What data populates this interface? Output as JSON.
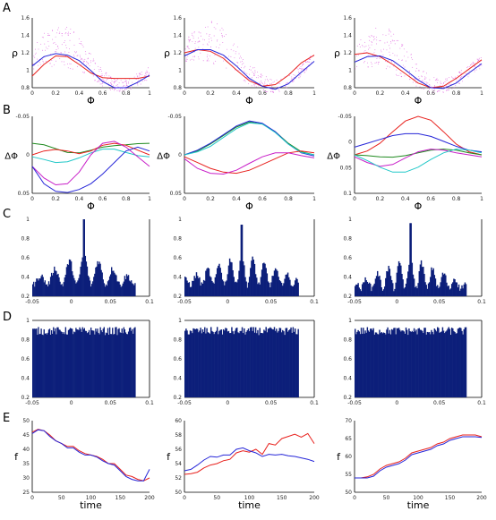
{
  "figure": {
    "row_labels": [
      "A",
      "B",
      "C",
      "D",
      "E"
    ],
    "colors": {
      "red": "#e8211d",
      "blue": "#2525d8",
      "green": "#1f8a1f",
      "cyan": "#22c8c8",
      "magenta": "#c81fc8",
      "navy": "#0c1f7a",
      "dots": "#e066e0"
    }
  },
  "chart_data": [
    {
      "id": "A1",
      "type": "line",
      "xlabel": "Φ",
      "ylabel": "ρ",
      "xlim": [
        0,
        1
      ],
      "ylim": [
        0.8,
        1.7
      ],
      "xticks": [
        "0",
        "0.2",
        "0.4",
        "0.6",
        "0.8",
        "1"
      ],
      "yticks": [
        "0.8",
        "1",
        "1.2",
        "1.4",
        "1.6"
      ],
      "scatter_cloud": true,
      "x": [
        0,
        0.1,
        0.2,
        0.3,
        0.4,
        0.5,
        0.6,
        0.7,
        0.8,
        0.9,
        1.0
      ],
      "series": [
        {
          "color": "red",
          "values": [
            0.95,
            1.1,
            1.21,
            1.2,
            1.1,
            0.99,
            0.93,
            0.92,
            0.92,
            0.92,
            0.95
          ]
        },
        {
          "color": "blue",
          "values": [
            1.08,
            1.2,
            1.24,
            1.22,
            1.15,
            1.02,
            0.88,
            0.8,
            0.8,
            0.87,
            0.96
          ]
        }
      ]
    },
    {
      "id": "A2",
      "type": "line",
      "xlabel": "Φ",
      "ylabel": "ρ",
      "xlim": [
        0,
        1
      ],
      "ylim": [
        0.8,
        1.7
      ],
      "xticks": [
        "0",
        "0.2",
        "0.4",
        "0.6",
        "0.8",
        "1"
      ],
      "yticks": [
        "0.8",
        "1",
        "1.2",
        "1.4",
        "1.6"
      ],
      "scatter_cloud": true,
      "x": [
        0,
        0.1,
        0.2,
        0.3,
        0.4,
        0.5,
        0.6,
        0.7,
        0.8,
        0.9,
        1.0
      ],
      "series": [
        {
          "color": "red",
          "values": [
            1.25,
            1.29,
            1.27,
            1.18,
            1.03,
            0.89,
            0.82,
            0.84,
            0.96,
            1.12,
            1.22
          ]
        },
        {
          "color": "blue",
          "values": [
            1.21,
            1.29,
            1.29,
            1.22,
            1.08,
            0.92,
            0.82,
            0.78,
            0.85,
            1.0,
            1.14
          ]
        }
      ]
    },
    {
      "id": "A3",
      "type": "line",
      "xlabel": "Φ",
      "ylabel": "ρ",
      "xlim": [
        0,
        1
      ],
      "ylim": [
        0.8,
        1.7
      ],
      "xticks": [
        "0",
        "0.2",
        "0.4",
        "0.6",
        "0.8",
        "1"
      ],
      "yticks": [
        "0.8",
        "1",
        "1.2",
        "1.4",
        "1.6"
      ],
      "scatter_cloud": true,
      "x": [
        0,
        0.1,
        0.2,
        0.3,
        0.4,
        0.5,
        0.6,
        0.7,
        0.8,
        0.9,
        1.0
      ],
      "series": [
        {
          "color": "red",
          "values": [
            1.23,
            1.25,
            1.2,
            1.1,
            0.98,
            0.86,
            0.8,
            0.82,
            0.92,
            1.04,
            1.16
          ]
        },
        {
          "color": "blue",
          "values": [
            1.13,
            1.2,
            1.21,
            1.15,
            1.03,
            0.9,
            0.8,
            0.79,
            0.86,
            0.99,
            1.11
          ]
        }
      ]
    },
    {
      "id": "B1",
      "type": "line",
      "xlabel": "Φ",
      "ylabel": "ΔΦ",
      "xlim": [
        0,
        1
      ],
      "ylim": [
        -0.1,
        0.1
      ],
      "xticks": [
        "0",
        "0.2",
        "0.4",
        "0.6",
        "0.8",
        "1"
      ],
      "yticks": [
        "0.05",
        "0",
        "-0.05"
      ],
      "x": [
        0,
        0.1,
        0.2,
        0.3,
        0.4,
        0.5,
        0.6,
        0.7,
        0.8,
        0.9,
        1.0
      ],
      "series": [
        {
          "color": "green",
          "values": [
            0.03,
            0.026,
            0.016,
            0.006,
            0.005,
            0.012,
            0.02,
            0.024,
            0.026,
            0.029,
            0.03
          ]
        },
        {
          "color": "red",
          "values": [
            0.0,
            0.01,
            0.014,
            0.01,
            0.003,
            0.01,
            0.025,
            0.03,
            0.025,
            0.012,
            0.0
          ]
        },
        {
          "color": "cyan",
          "values": [
            -0.005,
            -0.012,
            -0.02,
            -0.018,
            -0.008,
            0.005,
            0.015,
            0.015,
            0.006,
            -0.002,
            -0.005
          ]
        },
        {
          "color": "magenta",
          "values": [
            -0.03,
            -0.06,
            -0.078,
            -0.075,
            -0.045,
            0.0,
            0.03,
            0.035,
            0.02,
            -0.005,
            -0.03
          ]
        },
        {
          "color": "blue",
          "values": [
            -0.03,
            -0.075,
            -0.095,
            -0.098,
            -0.09,
            -0.075,
            -0.05,
            -0.02,
            0.01,
            0.02,
            0.01
          ]
        }
      ]
    },
    {
      "id": "B2",
      "type": "line",
      "xlabel": "Φ",
      "ylabel": "ΔΦ",
      "xlim": [
        0,
        1
      ],
      "ylim": [
        -0.1,
        0.1
      ],
      "xticks": [
        "0",
        "0.2",
        "0.4",
        "0.6",
        "0.8",
        "1"
      ],
      "yticks": [
        "0.05",
        "0",
        "-0.05"
      ],
      "x": [
        0,
        0.1,
        0.2,
        0.3,
        0.4,
        0.5,
        0.6,
        0.7,
        0.8,
        0.9,
        1.0
      ],
      "series": [
        {
          "color": "green",
          "values": [
            0.0,
            0.01,
            0.028,
            0.05,
            0.072,
            0.085,
            0.08,
            0.06,
            0.03,
            0.008,
            0.0
          ]
        },
        {
          "color": "blue",
          "values": [
            0.0,
            0.012,
            0.03,
            0.052,
            0.075,
            0.088,
            0.082,
            0.06,
            0.028,
            0.005,
            -0.003
          ]
        },
        {
          "color": "cyan",
          "values": [
            0.0,
            0.008,
            0.022,
            0.045,
            0.068,
            0.083,
            0.08,
            0.058,
            0.028,
            0.006,
            0.0
          ]
        },
        {
          "color": "red",
          "values": [
            -0.005,
            -0.02,
            -0.035,
            -0.045,
            -0.048,
            -0.04,
            -0.025,
            -0.01,
            0.005,
            0.01,
            0.005
          ]
        },
        {
          "color": "magenta",
          "values": [
            -0.01,
            -0.035,
            -0.048,
            -0.05,
            -0.04,
            -0.022,
            -0.005,
            0.005,
            0.005,
            -0.002,
            -0.008
          ]
        }
      ]
    },
    {
      "id": "B3",
      "type": "line",
      "xlabel": "Φ",
      "ylabel": "ΔΦ",
      "xlim": [
        0,
        1
      ],
      "ylim": [
        -0.1,
        0.1
      ],
      "xticks": [
        "0",
        "0.2",
        "0.4",
        "0.6",
        "0.8",
        "1"
      ],
      "yticks": [
        "0.1",
        "0.05",
        "0",
        "-0.05"
      ],
      "x": [
        0,
        0.1,
        0.2,
        0.3,
        0.4,
        0.5,
        0.6,
        0.7,
        0.8,
        0.9,
        1.0
      ],
      "series": [
        {
          "color": "red",
          "values": [
            0.0,
            0.01,
            0.03,
            0.06,
            0.088,
            0.1,
            0.09,
            0.06,
            0.028,
            0.008,
            0.0
          ]
        },
        {
          "color": "blue",
          "values": [
            0.02,
            0.03,
            0.04,
            0.05,
            0.055,
            0.055,
            0.048,
            0.035,
            0.022,
            0.012,
            0.008
          ]
        },
        {
          "color": "green",
          "values": [
            0.0,
            -0.002,
            -0.005,
            -0.006,
            -0.002,
            0.005,
            0.012,
            0.015,
            0.012,
            0.005,
            0.0
          ]
        },
        {
          "color": "magenta",
          "values": [
            -0.005,
            -0.02,
            -0.03,
            -0.025,
            -0.008,
            0.008,
            0.015,
            0.012,
            0.005,
            0.0,
            -0.005
          ]
        },
        {
          "color": "cyan",
          "values": [
            0.0,
            -0.015,
            -0.032,
            -0.045,
            -0.045,
            -0.032,
            -0.012,
            0.005,
            0.015,
            0.012,
            0.005
          ]
        }
      ]
    },
    {
      "id": "C1",
      "type": "bar",
      "xlim": [
        -0.1,
        0.1
      ],
      "ylim": [
        0,
        1
      ],
      "xticks": [
        "-0.05",
        "0",
        "0.05",
        "0.1"
      ],
      "yticks": [
        "0.2",
        "0.4",
        "0.6",
        "0.8",
        "1"
      ],
      "oscillation": {
        "baseline": 0.15,
        "amplitude": 0.4,
        "periods": 7,
        "center_peak": 1.0
      }
    },
    {
      "id": "C2",
      "type": "bar",
      "xlim": [
        -0.1,
        0.1
      ],
      "ylim": [
        0,
        1
      ],
      "xticks": [
        "-0.05",
        "0",
        "0.05",
        "0.1"
      ],
      "yticks": [
        "0.2",
        "0.4",
        "0.6",
        "0.8",
        "1"
      ],
      "oscillation": {
        "baseline": 0.15,
        "amplitude": 0.4,
        "periods": 10,
        "center_peak": 0.93
      }
    },
    {
      "id": "C3",
      "type": "bar",
      "xlim": [
        -0.1,
        0.1
      ],
      "ylim": [
        0,
        1
      ],
      "xticks": [
        "-0.05",
        "0",
        "0.05",
        "0.1"
      ],
      "yticks": [
        "0.2",
        "0.4",
        "0.6",
        "0.8",
        "1"
      ],
      "oscillation": {
        "baseline": 0.1,
        "amplitude": 0.4,
        "periods": 10,
        "center_peak": 0.95
      }
    },
    {
      "id": "D1",
      "type": "bar",
      "xlim": [
        -0.1,
        0.1
      ],
      "ylim": [
        0,
        1
      ],
      "xticks": [
        "-0.05",
        "0",
        "0.05",
        "0.1"
      ],
      "yticks": [
        "0.2",
        "0.4",
        "0.6",
        "0.8",
        "1"
      ],
      "flat_level": 0.88
    },
    {
      "id": "D2",
      "type": "bar",
      "xlim": [
        -0.1,
        0.1
      ],
      "ylim": [
        0,
        1
      ],
      "xticks": [
        "-0.05",
        "0",
        "0.05",
        "0.1"
      ],
      "yticks": [
        "0.2",
        "0.4",
        "0.6",
        "0.8",
        "1"
      ],
      "flat_level": 0.88
    },
    {
      "id": "D3",
      "type": "bar",
      "xlim": [
        -0.1,
        0.1
      ],
      "ylim": [
        0,
        1
      ],
      "xticks": [
        "-0.05",
        "0",
        "0.05",
        "0.1"
      ],
      "yticks": [
        "0.2",
        "0.4",
        "0.6",
        "0.8",
        "1"
      ],
      "flat_level": 0.88
    },
    {
      "id": "E1",
      "type": "line",
      "xlabel": "time",
      "ylabel": "f",
      "xlim": [
        0,
        200
      ],
      "ylim": [
        25,
        50
      ],
      "xticks": [
        "0",
        "50",
        "100",
        "150",
        "200"
      ],
      "yticks": [
        "25",
        "30",
        "35",
        "40",
        "45",
        "50"
      ],
      "x": [
        0,
        10,
        20,
        30,
        40,
        50,
        60,
        70,
        80,
        90,
        100,
        110,
        120,
        130,
        140,
        150,
        160,
        170,
        180,
        190,
        200
      ],
      "series": [
        {
          "color": "red",
          "values": [
            46,
            47,
            46.5,
            45,
            43,
            42,
            41,
            41,
            39.5,
            38.5,
            38,
            37.5,
            36.5,
            35,
            35,
            33,
            31,
            30.5,
            29.5,
            29,
            30
          ]
        },
        {
          "color": "blue",
          "values": [
            45.5,
            46.8,
            46.5,
            44.5,
            43,
            42,
            40.5,
            40.5,
            39,
            38,
            38,
            37.3,
            36,
            35,
            34.5,
            32.5,
            30.5,
            29.5,
            29,
            29,
            33
          ]
        }
      ]
    },
    {
      "id": "E2",
      "type": "line",
      "xlabel": "time",
      "ylabel": "f",
      "xlim": [
        0,
        200
      ],
      "ylim": [
        50,
        60
      ],
      "xticks": [
        "0",
        "50",
        "100",
        "150",
        "200"
      ],
      "yticks": [
        "50",
        "52",
        "54",
        "56",
        "58",
        "60"
      ],
      "x": [
        0,
        10,
        20,
        30,
        40,
        50,
        60,
        70,
        80,
        90,
        100,
        110,
        120,
        130,
        140,
        150,
        160,
        170,
        180,
        190,
        200
      ],
      "series": [
        {
          "color": "red",
          "values": [
            52.5,
            52.6,
            52.8,
            53.4,
            53.8,
            54,
            54.4,
            54.6,
            55.5,
            55.8,
            55.6,
            56,
            55.3,
            56.8,
            56.6,
            57.5,
            57.8,
            58.1,
            57.7,
            58.2,
            56.8
          ]
        },
        {
          "color": "blue",
          "values": [
            53,
            53.2,
            53.8,
            54.5,
            55,
            54.9,
            55.2,
            55.2,
            56,
            56.2,
            55.8,
            55.5,
            55,
            55.3,
            55.2,
            55.3,
            55.1,
            55.0,
            54.8,
            54.6,
            54.3
          ]
        }
      ]
    },
    {
      "id": "E3",
      "type": "line",
      "xlabel": "time",
      "ylabel": "f",
      "xlim": [
        0,
        200
      ],
      "ylim": [
        50,
        70
      ],
      "xticks": [
        "0",
        "50",
        "100",
        "150",
        "200"
      ],
      "yticks": [
        "50",
        "55",
        "60",
        "65",
        "70"
      ],
      "x": [
        0,
        10,
        20,
        30,
        40,
        50,
        60,
        70,
        80,
        90,
        100,
        110,
        120,
        130,
        140,
        150,
        160,
        170,
        180,
        190,
        200
      ],
      "series": [
        {
          "color": "red",
          "values": [
            54,
            54,
            54.3,
            55,
            56.5,
            57.5,
            58,
            58.5,
            59.5,
            61,
            61.5,
            62,
            62.5,
            63.5,
            64,
            65,
            65.5,
            66,
            66,
            66,
            65.5
          ]
        },
        {
          "color": "blue",
          "values": [
            54,
            54,
            54,
            54.5,
            56,
            57,
            57.5,
            58,
            59,
            60.5,
            61,
            61.5,
            62,
            63,
            63.5,
            64.5,
            65,
            65.5,
            65.5,
            65.5,
            65.3
          ]
        }
      ]
    }
  ]
}
